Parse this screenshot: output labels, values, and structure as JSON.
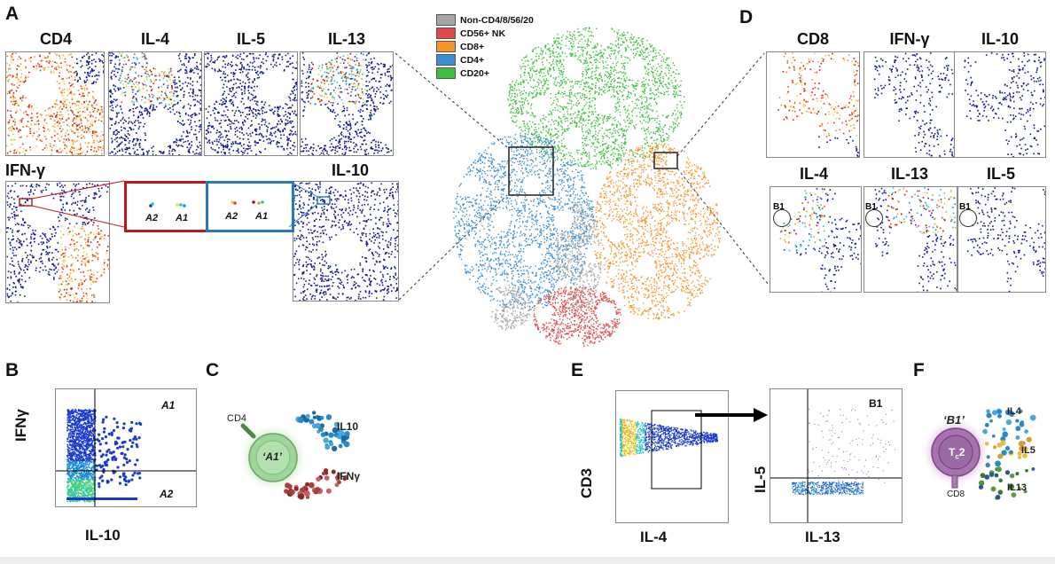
{
  "panels": {
    "A": "A",
    "B": "B",
    "C": "C",
    "D": "D",
    "E": "E",
    "F": "F"
  },
  "panel_a": {
    "titles": [
      "CD4",
      "IL-4",
      "IL-5",
      "IL-13"
    ],
    "ifng_title": "IFN-γ",
    "il10_title": "IL-10",
    "zoom_labels": [
      "A2",
      "A1",
      "A2",
      "A1"
    ]
  },
  "tsne_legend": [
    {
      "label": "Non-CD4/8/56/20",
      "color": "#a6a6a6"
    },
    {
      "label": "CD56+ NK",
      "color": "#e04a4a"
    },
    {
      "label": "CD8+",
      "color": "#f5962a"
    },
    {
      "label": "CD4+",
      "color": "#3a8fd0"
    },
    {
      "label": "CD20+",
      "color": "#3fbf3f"
    }
  ],
  "panel_d": {
    "titles_top": [
      "CD8",
      "IFN-γ",
      "IL-10"
    ],
    "titles_bottom": [
      "IL-4",
      "IL-13",
      "IL-5"
    ],
    "gate": "B1"
  },
  "panel_b": {
    "y_label": "IFNγ",
    "x_label": "IL-10",
    "q_top": "A1",
    "q_bottom": "A2"
  },
  "panel_c": {
    "cd4": "CD4",
    "cell": "‘A1’",
    "il10": "IL10",
    "ifng": "IFNγ"
  },
  "panel_e": {
    "y_left": "CD3",
    "x_left": "IL-4",
    "y_right": "IL-5",
    "x_right": "IL-13",
    "gate": "B1"
  },
  "panel_f": {
    "cell_label": "‘B1’",
    "tc2": "T",
    "tc2_sub": "c",
    "tc2_end": "2",
    "cd8": "CD8",
    "il4": "IL4",
    "il5": "IL5",
    "il13": "IL13"
  },
  "colors": {
    "dark_blue": "#0a1a8c",
    "red_box": "#c01818",
    "blue_box": "#2a78c0"
  }
}
